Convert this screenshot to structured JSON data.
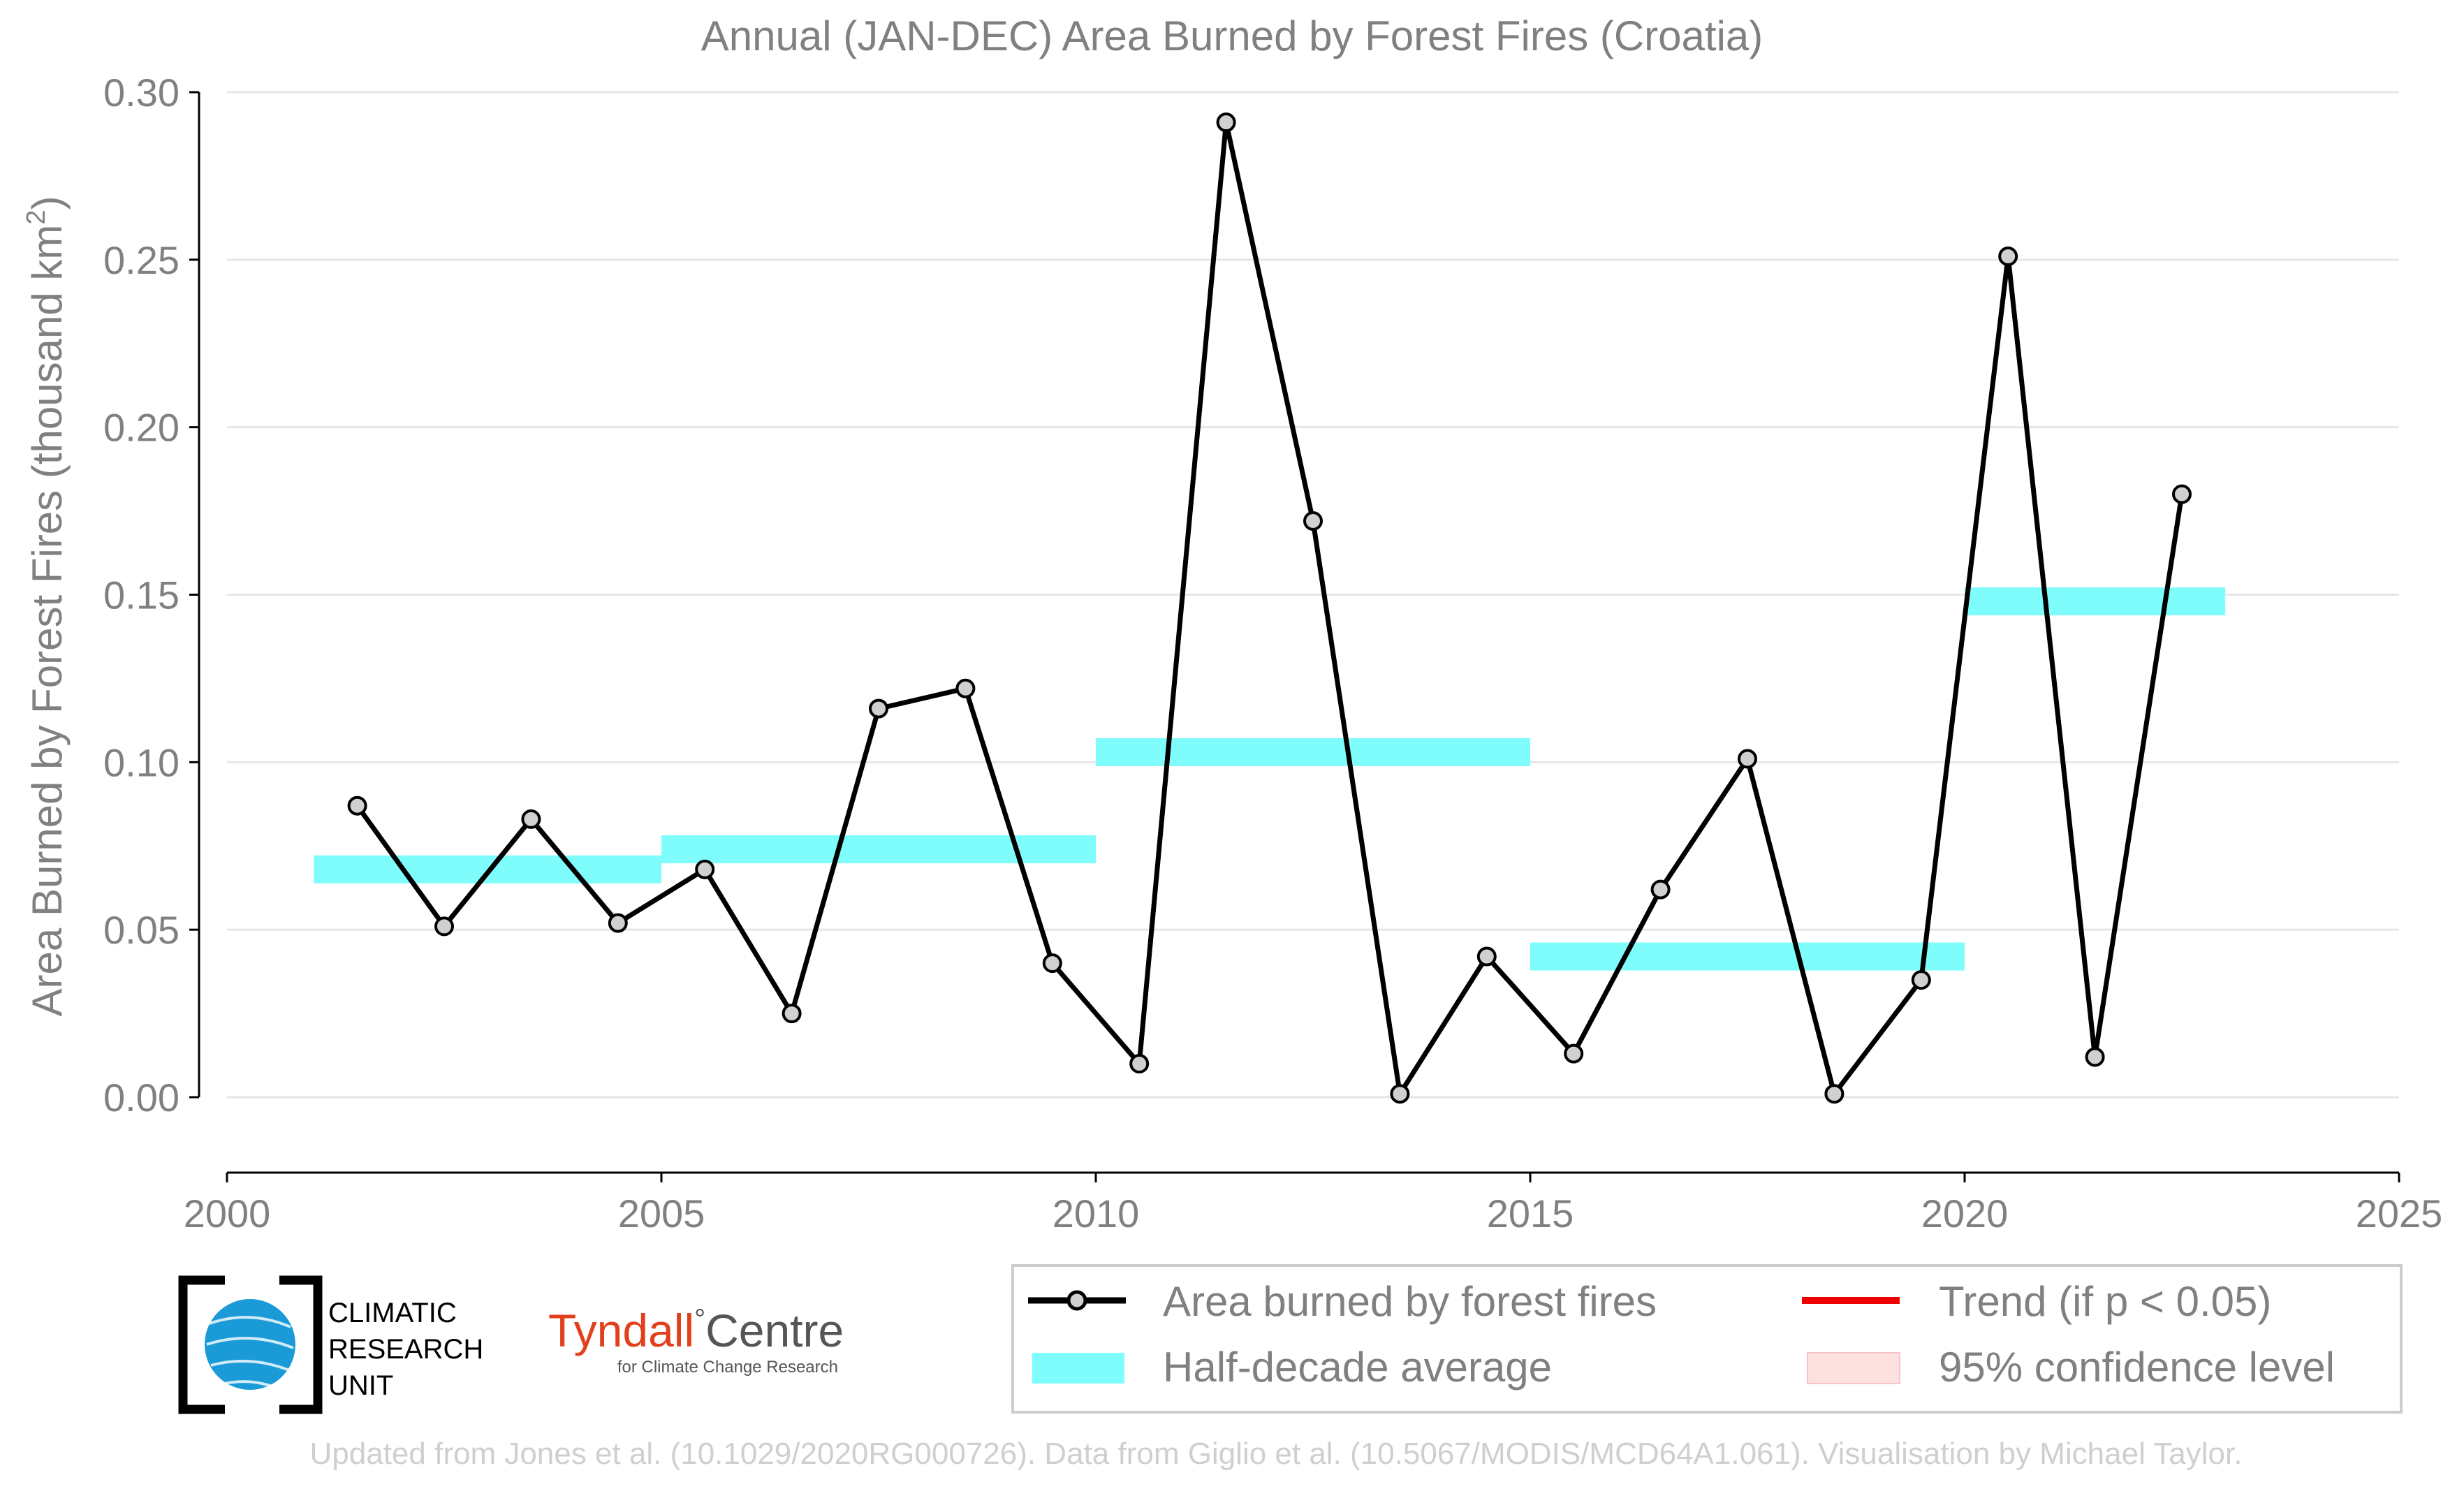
{
  "chart_data": {
    "type": "line",
    "title": "Annual (JAN-DEC) Area Burned by Forest Fires (Croatia)",
    "ylabel_main": "Area Burned by Forest Fires (thousand km",
    "ylabel_sup": "2",
    "ylabel_end": ")",
    "xlabel": "",
    "xlim": [
      2000,
      2025
    ],
    "ylim": [
      0.0,
      0.3
    ],
    "xticks": [
      2000,
      2005,
      2010,
      2015,
      2020,
      2025
    ],
    "xtick_labels": [
      "2000",
      "2005",
      "2010",
      "2015",
      "2020",
      "2025"
    ],
    "yticks": [
      0.0,
      0.05,
      0.1,
      0.15,
      0.2,
      0.25,
      0.3
    ],
    "ytick_labels": [
      "0.00",
      "0.05",
      "0.10",
      "0.15",
      "0.20",
      "0.25",
      "0.30"
    ],
    "grid": "horizontal",
    "series": [
      {
        "name": "Area burned by forest fires",
        "color": "#000000",
        "x": [
          2001.5,
          2002.5,
          2003.5,
          2004.5,
          2005.5,
          2006.5,
          2007.5,
          2008.5,
          2009.5,
          2010.5,
          2011.5,
          2012.5,
          2013.5,
          2014.5,
          2015.5,
          2016.5,
          2017.5,
          2018.5,
          2019.5,
          2020.5,
          2021.5,
          2022.5
        ],
        "y": [
          0.087,
          0.051,
          0.083,
          0.052,
          0.068,
          0.025,
          0.116,
          0.122,
          0.04,
          0.01,
          0.291,
          0.172,
          0.001,
          0.042,
          0.013,
          0.062,
          0.101,
          0.001,
          0.035,
          0.251,
          0.012,
          0.18
        ]
      }
    ],
    "half_decade_average": {
      "name": "Half-decade average",
      "color": "#7ffcfc",
      "segments": [
        {
          "x0": 2001,
          "x1": 2005,
          "y": 0.068
        },
        {
          "x0": 2005,
          "x1": 2010,
          "y": 0.074
        },
        {
          "x0": 2010,
          "x1": 2015,
          "y": 0.103
        },
        {
          "x0": 2015,
          "x1": 2020,
          "y": 0.042
        },
        {
          "x0": 2020,
          "x1": 2023,
          "y": 0.148
        }
      ]
    },
    "legend": {
      "placement": "bottom-right",
      "entries": [
        {
          "label": "Area burned by forest fires",
          "kind": "line-marker",
          "color": "#000000"
        },
        {
          "label": "Trend (if p < 0.05)",
          "kind": "line",
          "color": "#ee0000"
        },
        {
          "label": "Half-decade average",
          "kind": "band",
          "color": "#7ffcfc"
        },
        {
          "label": "95% confidence level",
          "kind": "band",
          "color": "#fde0e0"
        }
      ]
    }
  },
  "logos": {
    "cru_line1": "CLIMATIC",
    "cru_line2": "RESEARCH",
    "cru_line3": "UNIT",
    "tyndall_name": "Tyndall",
    "tyndall_degree": "°",
    "tyndall_centre": "Centre",
    "tyndall_tagline": "for Climate Change Research"
  },
  "footer": "Updated from Jones et al. (10.1029/2020RG000726). Data from Giglio et al. (10.5067/MODIS/MCD64A1.061). Visualisation by Michael Taylor.",
  "colors": {
    "text_grey": "#808080",
    "grid": "#e6e6e6",
    "tyndall_red": "#e2401c",
    "cru_blue": "#1a9bd7"
  }
}
